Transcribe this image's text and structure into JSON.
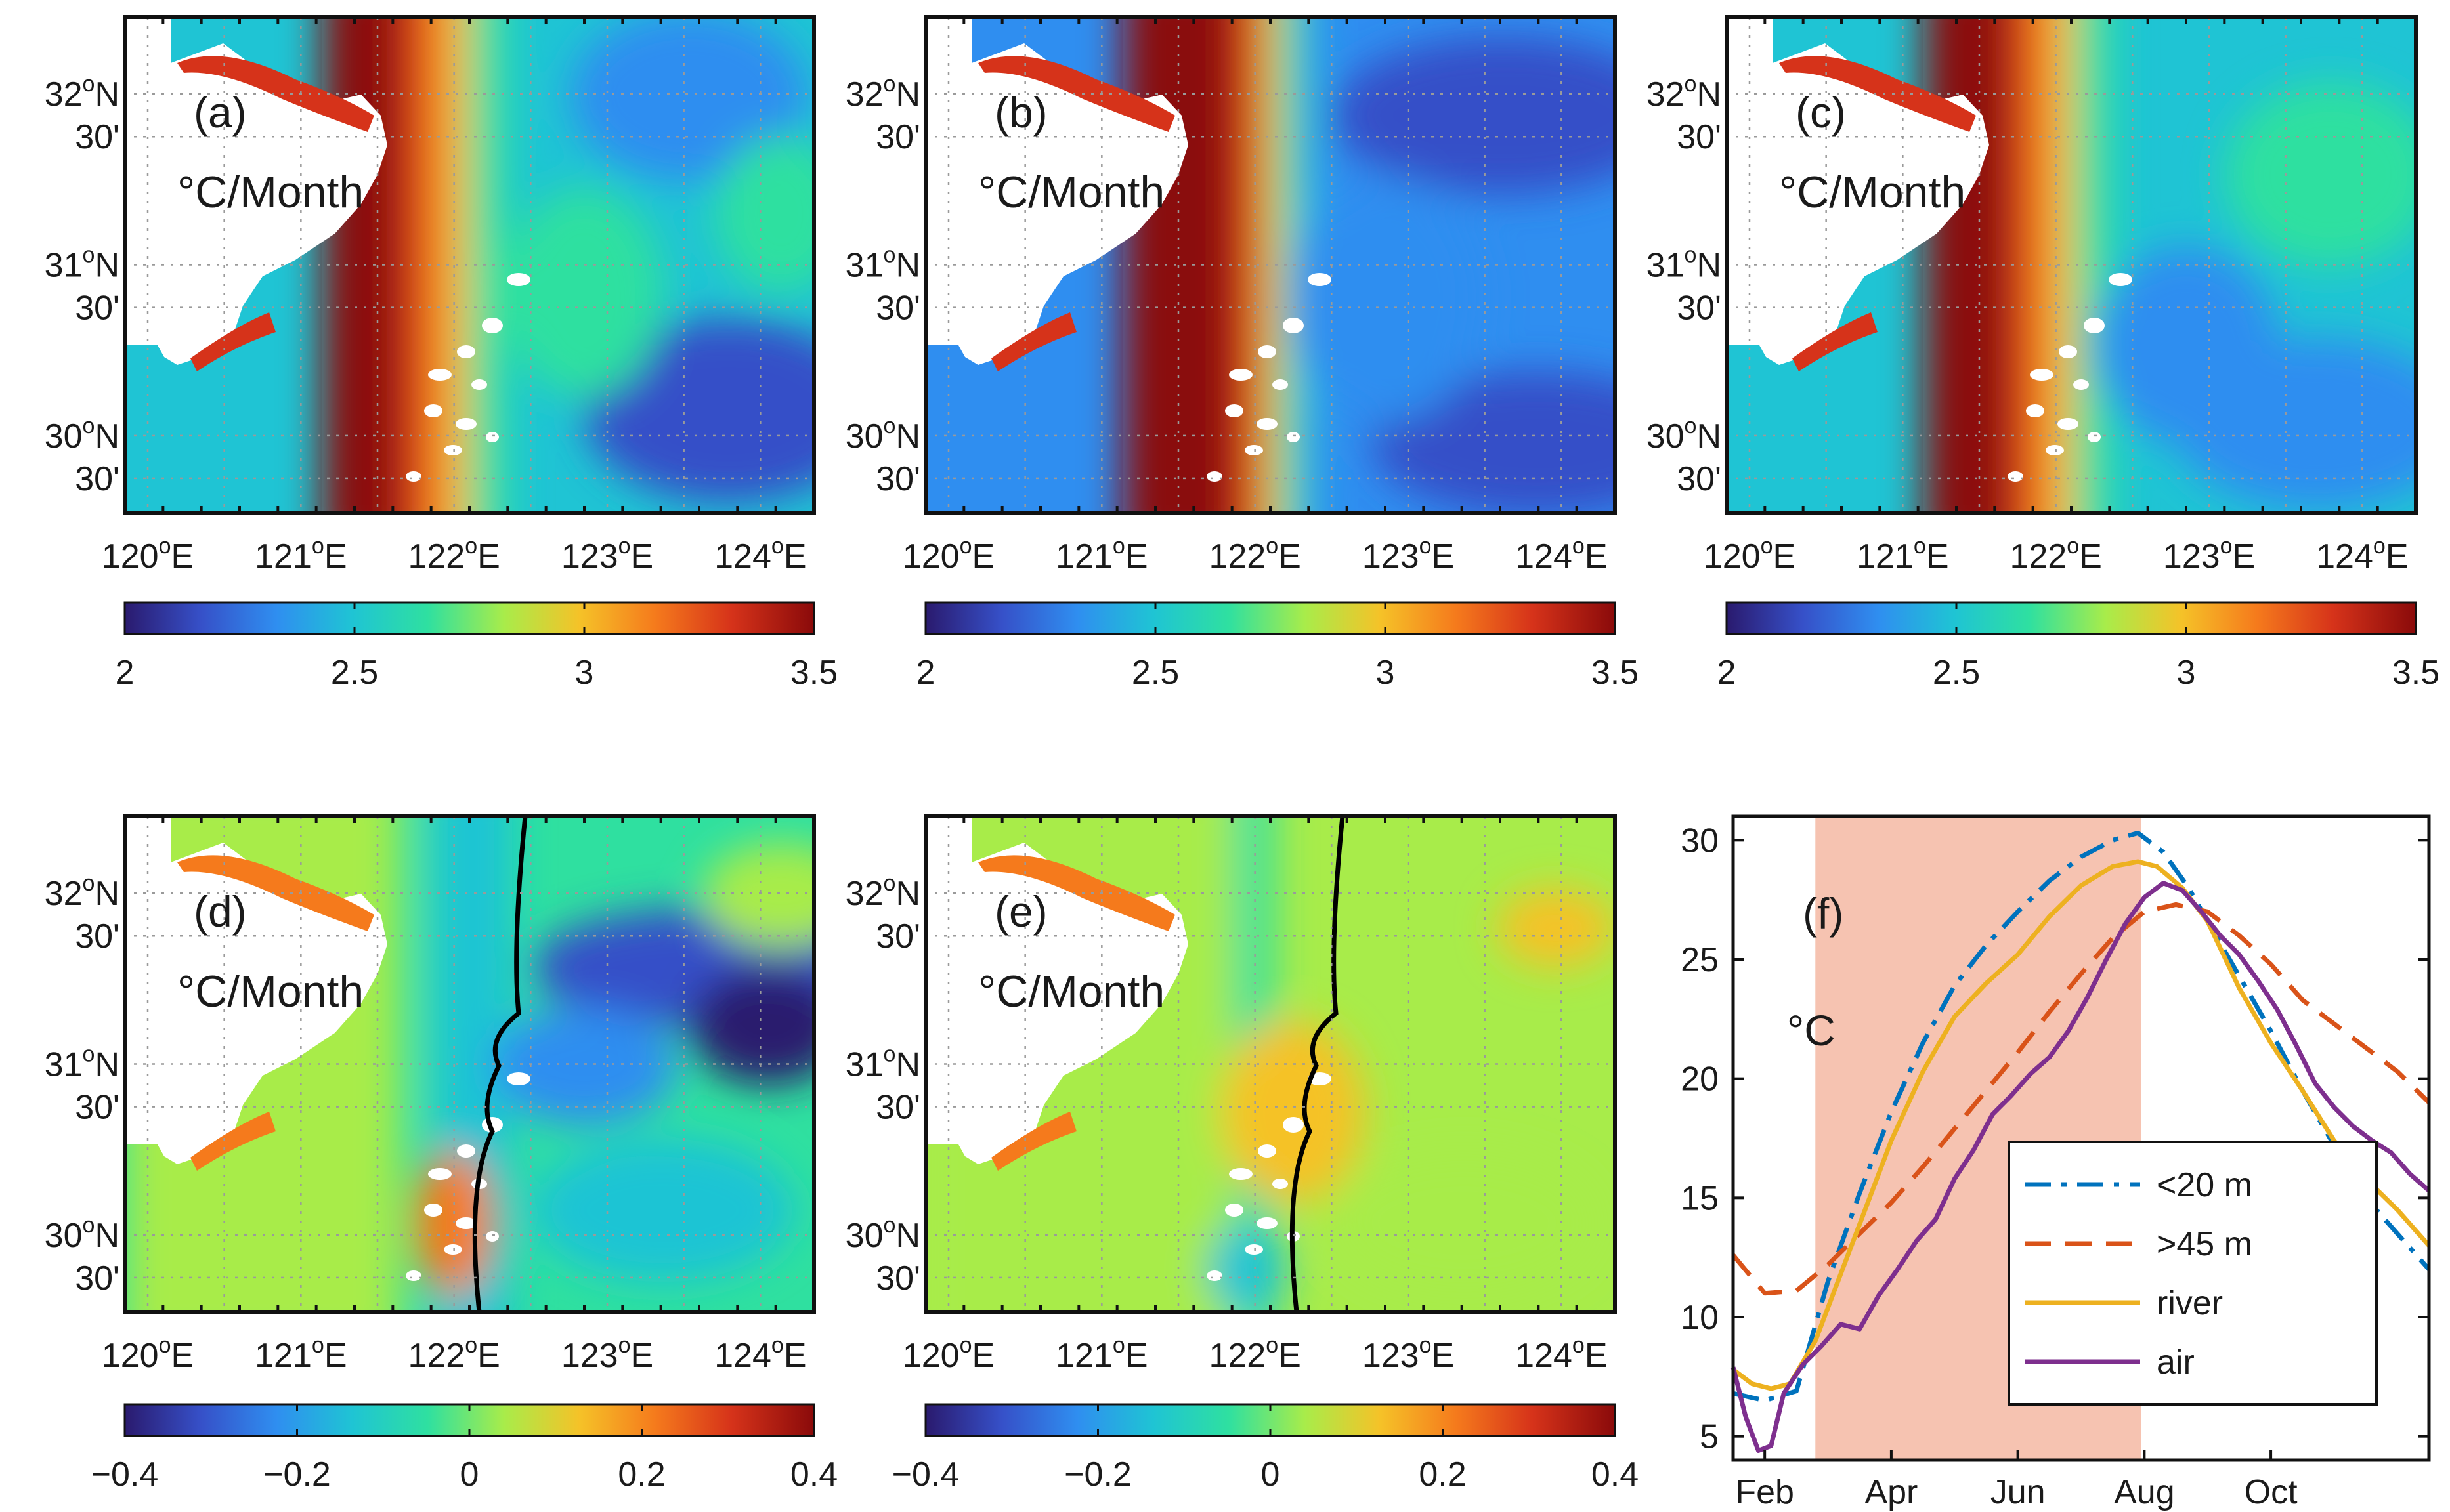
{
  "colors": {
    "jet": [
      "#2a1a6e",
      "#3650c8",
      "#2f8ef0",
      "#1fc4d4",
      "#2fe0a0",
      "#a8ec4a",
      "#f5c228",
      "#f57a1c",
      "#d6331a",
      "#8a0a0a"
    ],
    "land": "#ffffff",
    "shading": "#f6c3b1",
    "contour": "#000000"
  },
  "map_axes": {
    "lon_ticks": [
      "120",
      "121",
      "122",
      "123",
      "124"
    ],
    "lon_suffix": "E",
    "lat_ticks": [
      {
        "deg": "32",
        "label": "32",
        "hemi": "N"
      },
      {
        "deg": "31.75",
        "label": "30'",
        "hemi": ""
      },
      {
        "deg": "31",
        "label": "31",
        "hemi": "N"
      },
      {
        "deg": "30.75",
        "label": "30'",
        "hemi": ""
      },
      {
        "deg": "30",
        "label": "30",
        "hemi": "N"
      },
      {
        "deg": "29.75",
        "label": "30'",
        "hemi": ""
      }
    ],
    "degree_mark": "o"
  },
  "panels": [
    {
      "id": "a",
      "label": "(a)",
      "unit": "°C/Month",
      "colorbar_ticks": [
        "2",
        "2.5",
        "3",
        "3.5"
      ],
      "colorbar_range": [
        2,
        3.5
      ],
      "style": "warming_strong"
    },
    {
      "id": "b",
      "label": "(b)",
      "unit": "°C/Month",
      "colorbar_ticks": [
        "2",
        "2.5",
        "3",
        "3.5"
      ],
      "colorbar_range": [
        2,
        3.5
      ],
      "style": "warming_sharp"
    },
    {
      "id": "c",
      "label": "(c)",
      "unit": "°C/Month",
      "colorbar_ticks": [
        "2",
        "2.5",
        "3",
        "3.5"
      ],
      "colorbar_range": [
        2,
        3.5
      ],
      "style": "warming_mid"
    },
    {
      "id": "d",
      "label": "(d)",
      "unit": "°C/Month",
      "colorbar_ticks": [
        "−0.4",
        "−0.2",
        "0",
        "0.2",
        "0.4"
      ],
      "colorbar_range": [
        -0.4,
        0.4
      ],
      "style": "diff_strong"
    },
    {
      "id": "e",
      "label": "(e)",
      "unit": "°C/Month",
      "colorbar_ticks": [
        "−0.4",
        "−0.2",
        "0",
        "0.2",
        "0.4"
      ],
      "colorbar_range": [
        -0.4,
        0.4
      ],
      "style": "diff_weak"
    }
  ],
  "chart_data": {
    "type": "line",
    "label": "(f)",
    "ylabel": "°C",
    "ylim": [
      4,
      31
    ],
    "yticks": [
      5,
      10,
      15,
      20,
      25,
      30
    ],
    "xlim_month": [
      1.5,
      12.5
    ],
    "xticks": [
      {
        "month": 2,
        "label": "Feb"
      },
      {
        "month": 4,
        "label": "Apr"
      },
      {
        "month": 6,
        "label": "Jun"
      },
      {
        "month": 8,
        "label": "Aug"
      },
      {
        "month": 10,
        "label": "Oct"
      }
    ],
    "shaded_months": [
      2.8,
      7.95
    ],
    "legend": "bottom-right",
    "series": [
      {
        "name": "<20 m",
        "color": "#0072bd",
        "dash": "dashdot",
        "x": [
          1.5,
          2.0,
          2.5,
          3.0,
          3.5,
          4.0,
          4.5,
          5.0,
          5.5,
          6.0,
          6.5,
          7.0,
          7.5,
          7.9,
          8.3,
          8.7,
          9.0,
          9.5,
          10.0,
          10.5,
          11.0,
          11.5,
          12.0,
          12.5
        ],
        "y": [
          6.8,
          6.5,
          6.9,
          11.5,
          15.2,
          18.6,
          21.5,
          23.9,
          25.6,
          27.0,
          28.3,
          29.3,
          30.0,
          30.3,
          29.5,
          28.0,
          26.6,
          24.3,
          22.0,
          19.5,
          17.2,
          15.0,
          13.5,
          12.0
        ]
      },
      {
        "name": ">45 m",
        "color": "#d95319",
        "dash": "dashed",
        "x": [
          1.5,
          2.0,
          2.5,
          3.0,
          3.5,
          4.0,
          4.5,
          5.0,
          5.5,
          6.0,
          6.5,
          7.0,
          7.5,
          8.0,
          8.5,
          9.0,
          9.5,
          10.0,
          10.5,
          11.0,
          11.5,
          12.0,
          12.5
        ],
        "y": [
          12.6,
          11.0,
          11.1,
          12.2,
          13.5,
          14.8,
          16.3,
          17.9,
          19.5,
          21.1,
          22.8,
          24.4,
          25.9,
          27.0,
          27.3,
          27.0,
          26.0,
          24.8,
          23.3,
          22.3,
          21.3,
          20.3,
          19.0
        ]
      },
      {
        "name": "river",
        "color": "#edb120",
        "dash": "solid",
        "x": [
          1.5,
          1.8,
          2.1,
          2.4,
          2.8,
          3.2,
          3.6,
          4.0,
          4.5,
          5.0,
          5.5,
          6.0,
          6.5,
          7.0,
          7.5,
          7.9,
          8.2,
          8.6,
          9.0,
          9.5,
          10.0,
          10.5,
          11.0,
          11.5,
          12.0,
          12.5
        ],
        "y": [
          7.8,
          7.2,
          7.0,
          7.2,
          9.0,
          11.8,
          14.6,
          17.4,
          20.3,
          22.6,
          24.0,
          25.2,
          26.8,
          28.1,
          28.9,
          29.1,
          28.9,
          28.0,
          26.6,
          23.8,
          21.5,
          19.5,
          17.4,
          15.8,
          14.5,
          13.0
        ]
      },
      {
        "name": "air",
        "color": "#7e2f8e",
        "dash": "solid",
        "x": [
          1.5,
          1.7,
          1.9,
          2.1,
          2.3,
          2.6,
          2.9,
          3.2,
          3.5,
          3.8,
          4.1,
          4.4,
          4.7,
          5.0,
          5.3,
          5.6,
          5.9,
          6.2,
          6.5,
          6.8,
          7.1,
          7.4,
          7.7,
          8.0,
          8.3,
          8.6,
          8.9,
          9.2,
          9.5,
          9.8,
          10.1,
          10.4,
          10.7,
          11.0,
          11.3,
          11.6,
          11.9,
          12.2,
          12.5
        ],
        "y": [
          7.9,
          5.8,
          4.4,
          4.6,
          6.8,
          8.0,
          8.8,
          9.7,
          9.5,
          10.9,
          12.0,
          13.2,
          14.1,
          15.8,
          17.0,
          18.5,
          19.3,
          20.2,
          20.9,
          22.0,
          23.4,
          25.0,
          26.5,
          27.6,
          28.2,
          27.9,
          27.0,
          26.0,
          25.2,
          24.1,
          22.9,
          21.4,
          19.8,
          18.8,
          18.0,
          17.4,
          16.9,
          16.0,
          15.3
        ]
      }
    ]
  }
}
